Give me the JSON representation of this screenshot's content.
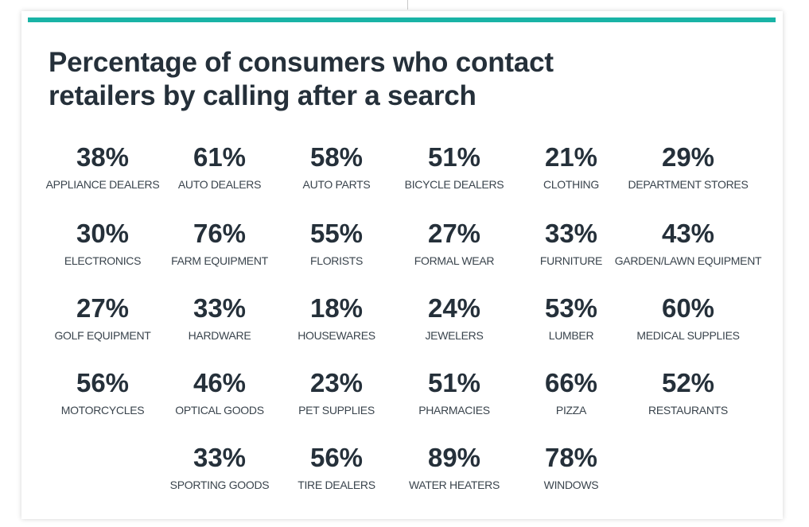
{
  "colors": {
    "accent": "#19b3a6",
    "text": "#25303a"
  },
  "chart_data": {
    "type": "table",
    "title_lines": [
      "Percentage of consumers who contact",
      "retailers by calling after a search"
    ],
    "unit": "%",
    "items": [
      {
        "label": "APPLIANCE DEALERS",
        "value": 38,
        "display": "38%"
      },
      {
        "label": "AUTO DEALERS",
        "value": 61,
        "display": "61%"
      },
      {
        "label": "AUTO PARTS",
        "value": 58,
        "display": "58%"
      },
      {
        "label": "BICYCLE DEALERS",
        "value": 51,
        "display": "51%"
      },
      {
        "label": "CLOTHING",
        "value": 21,
        "display": "21%"
      },
      {
        "label": "DEPARTMENT STORES",
        "value": 29,
        "display": "29%"
      },
      {
        "label": "ELECTRONICS",
        "value": 30,
        "display": "30%"
      },
      {
        "label": "FARM EQUIPMENT",
        "value": 76,
        "display": "76%"
      },
      {
        "label": "FLORISTS",
        "value": 55,
        "display": "55%"
      },
      {
        "label": "FORMAL WEAR",
        "value": 27,
        "display": "27%"
      },
      {
        "label": "FURNITURE",
        "value": 33,
        "display": "33%"
      },
      {
        "label": "GARDEN/LAWN EQUIPMENT",
        "value": 43,
        "display": "43%"
      },
      {
        "label": "GOLF EQUIPMENT",
        "value": 27,
        "display": "27%"
      },
      {
        "label": "HARDWARE",
        "value": 33,
        "display": "33%"
      },
      {
        "label": "HOUSEWARES",
        "value": 18,
        "display": "18%"
      },
      {
        "label": "JEWELERS",
        "value": 24,
        "display": "24%"
      },
      {
        "label": "LUMBER",
        "value": 53,
        "display": "53%"
      },
      {
        "label": "MEDICAL SUPPLIES",
        "value": 60,
        "display": "60%"
      },
      {
        "label": "MOTORCYCLES",
        "value": 56,
        "display": "56%"
      },
      {
        "label": "OPTICAL GOODS",
        "value": 46,
        "display": "46%"
      },
      {
        "label": "PET SUPPLIES",
        "value": 23,
        "display": "23%"
      },
      {
        "label": "PHARMACIES",
        "value": 51,
        "display": "51%"
      },
      {
        "label": "PIZZA",
        "value": 66,
        "display": "66%"
      },
      {
        "label": "RESTAURANTS",
        "value": 52,
        "display": "52%"
      },
      {
        "label": "SPORTING GOODS",
        "value": 33,
        "display": "33%"
      },
      {
        "label": "TIRE DEALERS",
        "value": 56,
        "display": "56%"
      },
      {
        "label": "WATER HEATERS",
        "value": 89,
        "display": "89%"
      },
      {
        "label": "WINDOWS",
        "value": 78,
        "display": "78%"
      }
    ]
  }
}
